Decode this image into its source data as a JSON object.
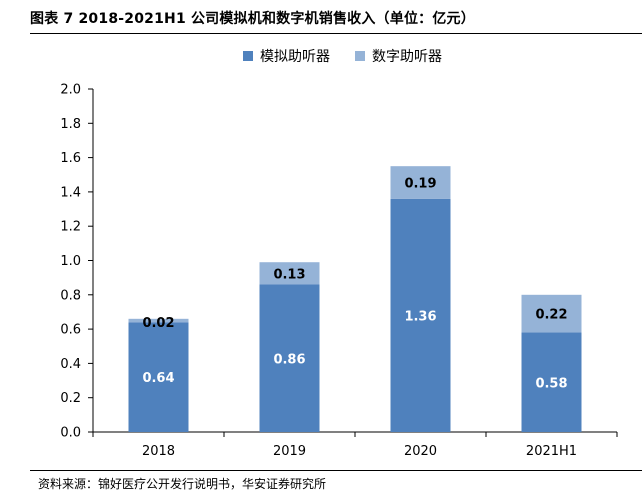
{
  "header": {
    "title": "图表 7 2018-2021H1 公司模拟机和数字机销售收入（单位：亿元）"
  },
  "footer": {
    "source": "资料来源：锦好医疗公开发行说明书，华安证券研究所"
  },
  "chart_data": {
    "type": "bar",
    "stacked": true,
    "title": "2018-2021H1 公司模拟机和数字机销售收入（单位：亿元）",
    "categories": [
      "2018",
      "2019",
      "2020",
      "2021H1"
    ],
    "series": [
      {
        "name": "模拟助听器",
        "values": [
          0.64,
          0.86,
          1.36,
          0.58
        ],
        "color": "#4f81bd",
        "label_color": "#ffffff"
      },
      {
        "name": "数字助听器",
        "values": [
          0.02,
          0.13,
          0.19,
          0.22
        ],
        "color": "#95b3d7",
        "label_color": "#000000"
      }
    ],
    "value_labels": [
      [
        "0.64",
        "0.86",
        "1.36",
        "0.58"
      ],
      [
        "0.02",
        "0.13",
        "0.19",
        "0.22"
      ]
    ],
    "ylim": [
      0,
      2.0
    ],
    "yticks": [
      0.0,
      0.2,
      0.4,
      0.6,
      0.8,
      1.0,
      1.2,
      1.4,
      1.6,
      1.8,
      2.0
    ],
    "ytick_labels": [
      "0.0",
      "0.2",
      "0.4",
      "0.6",
      "0.8",
      "1.0",
      "1.2",
      "1.4",
      "1.6",
      "1.8",
      "2.0"
    ],
    "xlabel": "",
    "ylabel": "",
    "grid": false,
    "legend_position": "top-center"
  }
}
